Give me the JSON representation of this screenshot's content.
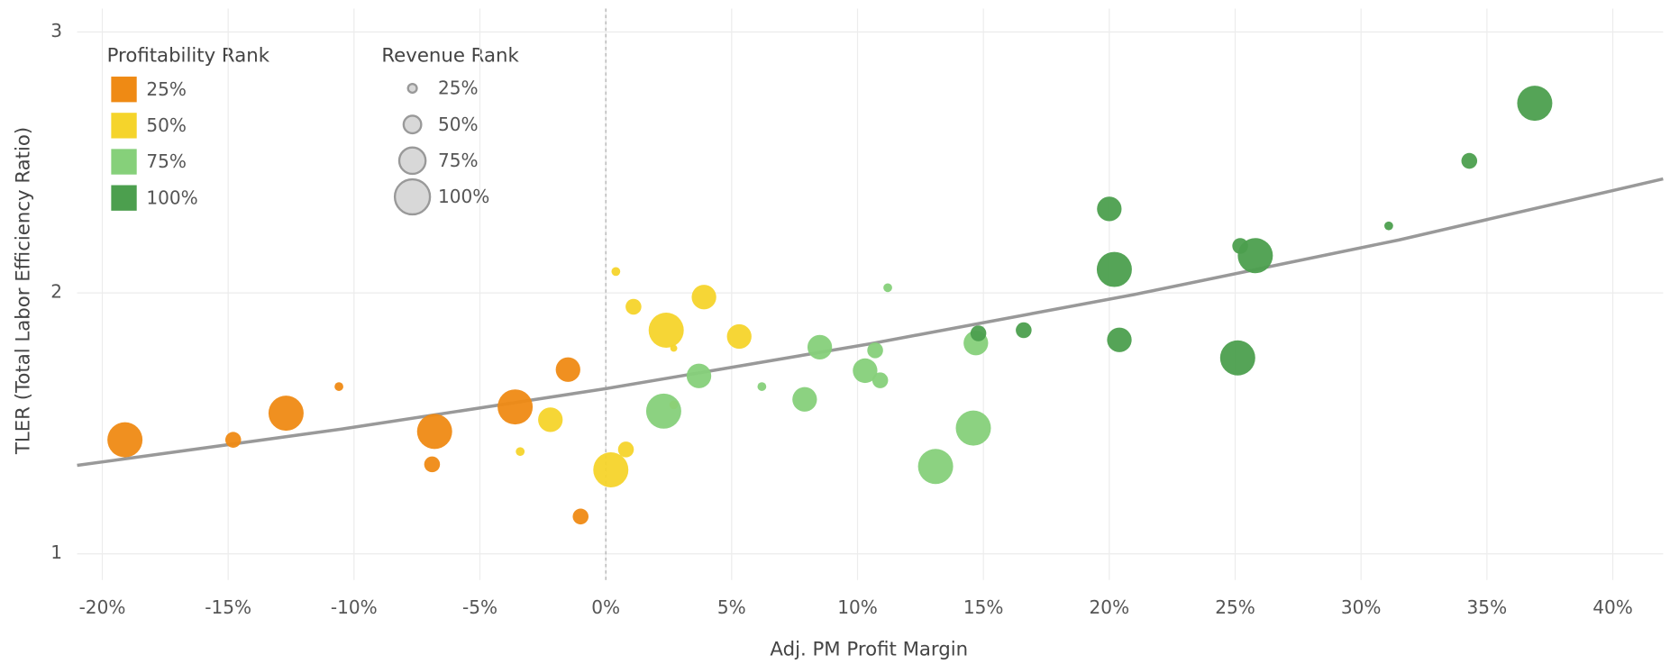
{
  "chart_data": {
    "type": "scatter",
    "x_label": "Adj. PM Profit Margin",
    "y_label": "TLER (Total Labor Efficiency Ratio)",
    "xlim": [
      -21,
      42
    ],
    "ylim": [
      0.9,
      3.09
    ],
    "xticks": [
      {
        "value": -20,
        "label": "-20%"
      },
      {
        "value": -15,
        "label": "-15%"
      },
      {
        "value": -10,
        "label": "-10%"
      },
      {
        "value": -5,
        "label": "-5%"
      },
      {
        "value": 0,
        "label": "0%"
      },
      {
        "value": 5,
        "label": "5%"
      },
      {
        "value": 10,
        "label": "10%"
      },
      {
        "value": 15,
        "label": "15%"
      },
      {
        "value": 20,
        "label": "20%"
      },
      {
        "value": 25,
        "label": "25%"
      },
      {
        "value": 30,
        "label": "30%"
      },
      {
        "value": 35,
        "label": "35%"
      },
      {
        "value": 40,
        "label": "40%"
      }
    ],
    "yticks": [
      1,
      2,
      3
    ],
    "grid": true,
    "zero_line": true,
    "color_legend_title": "Profitability Rank",
    "size_legend_title": "Revenue Rank",
    "size_legend": [
      {
        "value": 25,
        "label": "25%"
      },
      {
        "value": 50,
        "label": "50%"
      },
      {
        "value": 75,
        "label": "75%"
      },
      {
        "value": 100,
        "label": "100%"
      }
    ],
    "series": [
      {
        "name": "25%",
        "color": "#ef8a14",
        "x": [
          -19.1,
          -14.8,
          -12.7,
          -10.6,
          -6.8,
          -6.9,
          -3.6,
          -1.5,
          -1.0
        ],
        "y": [
          1.437,
          1.437,
          1.539,
          1.641,
          1.469,
          1.343,
          1.563,
          1.706,
          1.143
        ],
        "size": [
          100,
          45,
          100,
          25,
          100,
          45,
          100,
          70,
          45
        ]
      },
      {
        "name": "50%",
        "color": "#f5d42b",
        "x": [
          0.2,
          0.4,
          0.8,
          1.1,
          2.4,
          2.7,
          2.7,
          3.9,
          5.3,
          -2.2,
          -3.4
        ],
        "y": [
          1.322,
          2.082,
          1.4,
          1.947,
          1.857,
          1.788,
          1.571,
          1.984,
          1.833,
          1.514,
          1.392
        ],
        "size": [
          100,
          25,
          45,
          45,
          100,
          20,
          25,
          70,
          70,
          70,
          25
        ]
      },
      {
        "name": "75%",
        "color": "#86d07a",
        "x": [
          2.3,
          3.7,
          6.2,
          7.9,
          8.5,
          10.3,
          10.7,
          10.9,
          11.2,
          13.1,
          14.6,
          14.7
        ],
        "y": [
          1.547,
          1.682,
          1.641,
          1.592,
          1.792,
          1.702,
          1.78,
          1.665,
          2.02,
          1.335,
          1.482,
          1.808
        ],
        "size": [
          100,
          70,
          25,
          70,
          70,
          70,
          45,
          45,
          25,
          100,
          100,
          70
        ]
      },
      {
        "name": "100%",
        "color": "#4c9f4e",
        "x": [
          14.8,
          16.6,
          20.0,
          20.2,
          20.4,
          25.1,
          25.2,
          25.8,
          31.1,
          34.3,
          36.9
        ],
        "y": [
          1.845,
          1.857,
          2.322,
          2.09,
          1.82,
          1.751,
          2.18,
          2.143,
          2.257,
          2.506,
          2.727
        ],
        "size": [
          45,
          45,
          70,
          100,
          70,
          100,
          45,
          100,
          25,
          45,
          100
        ]
      }
    ],
    "trend": {
      "color": "#999999",
      "x": [
        -21,
        -10.5,
        0,
        10.5,
        21,
        31.5,
        42
      ],
      "y": [
        1.339,
        1.478,
        1.633,
        1.805,
        1.994,
        2.203,
        2.437
      ]
    }
  }
}
